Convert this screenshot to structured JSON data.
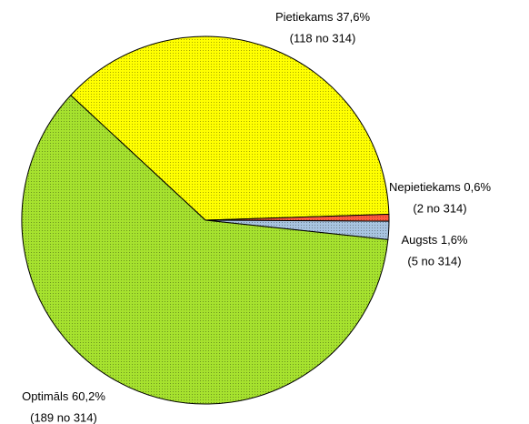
{
  "chart_data": {
    "type": "pie",
    "categories": [
      "Pietiekams",
      "Nepietiekams",
      "Augsts",
      "Optimāls"
    ],
    "values": [
      37.6,
      0.6,
      1.6,
      60.2
    ],
    "value_labels": [
      "37,6%",
      "0,6%",
      "1,6%",
      "60,2%"
    ],
    "annotations": [
      "(118 no 314)",
      "(2 no 314)",
      "(5 no 314)",
      "(189 no 314)"
    ],
    "colors": [
      "#ffff00",
      "#ff5a3c",
      "#a8c4e0",
      "#a6e22e"
    ]
  }
}
